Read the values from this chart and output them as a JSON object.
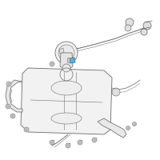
{
  "bg_color": "#ffffff",
  "line_color": "#6a6a6a",
  "highlight_color": "#5ab0d8",
  "fig_width": 2.0,
  "fig_height": 2.0,
  "dpi": 100
}
